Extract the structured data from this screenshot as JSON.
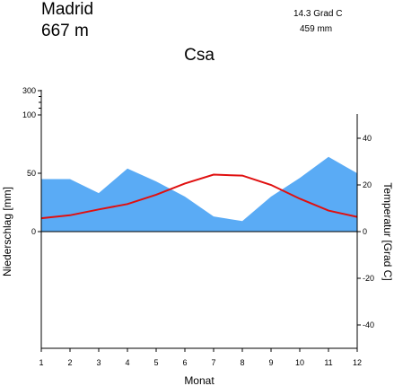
{
  "header": {
    "station": "Madrid",
    "elevation": "667  m",
    "mean_temp": "14.3 Grad C",
    "annual_precip": "459 mm",
    "climate_class": "Csa"
  },
  "colors": {
    "precip_fill": "#5aabf5",
    "temp_line": "#e01010"
  },
  "chart_data": {
    "type": "area",
    "title": "Csa",
    "xlabel": "Monat",
    "ylabel_left": "Niederschlag [mm]",
    "ylabel_right": "Temperatur [Grad C]",
    "categories": [
      "1",
      "2",
      "3",
      "4",
      "5",
      "6",
      "7",
      "8",
      "9",
      "10",
      "11",
      "12"
    ],
    "left_axis": {
      "ticks": [
        {
          "value": 0,
          "label": "0"
        },
        {
          "value": 50,
          "label": "50"
        },
        {
          "value": 100,
          "label": "100"
        },
        {
          "value": 300,
          "label": "300"
        }
      ],
      "scale": "linear 0-100 mm, compressed above 100 mm"
    },
    "right_axis": {
      "ticks": [
        {
          "value": -40,
          "label": "-40"
        },
        {
          "value": -20,
          "label": "-20"
        },
        {
          "value": 0,
          "label": "0"
        },
        {
          "value": 20,
          "label": "20"
        },
        {
          "value": 40,
          "label": "40"
        }
      ],
      "ylim": [
        -50,
        50
      ]
    },
    "series": [
      {
        "kind": "precipitation",
        "unit": "mm",
        "values": [
          45,
          45,
          33,
          54,
          43,
          30,
          13,
          9,
          30,
          46,
          64,
          50
        ]
      },
      {
        "kind": "temperature",
        "unit": "Grad C",
        "values": [
          5.7,
          7.0,
          9.5,
          11.8,
          15.8,
          20.6,
          24.4,
          24.0,
          20.0,
          14.1,
          9.0,
          6.3
        ]
      }
    ],
    "grid": false
  }
}
